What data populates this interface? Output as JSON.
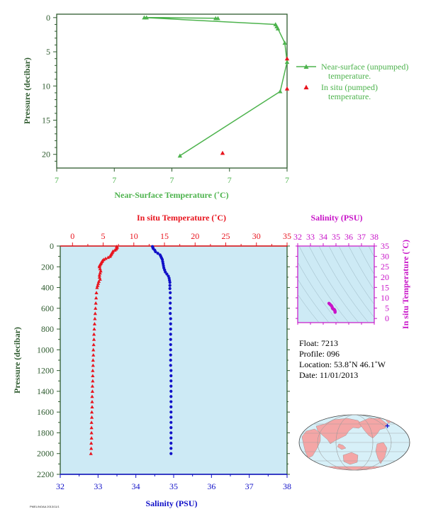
{
  "colors": {
    "surface_green": "#4db34d",
    "axis_green": "#2e5a2e",
    "temp_red": "#e8141e",
    "sal_blue": "#1010c8",
    "magenta": "#c814c8",
    "panel_bg": "#cdeaf5",
    "map_land": "#f4a6a6",
    "map_ocean": "#d7f0f8"
  },
  "chart_data": [
    {
      "type": "line",
      "id": "near-surface",
      "xlabel": "Near-Surface Temperature (˚C)",
      "ylabel": "Pressure (decibar)",
      "x_ticks": [
        "7",
        "7",
        "7",
        "7",
        "7"
      ],
      "y_ticks": [
        0,
        5,
        10,
        15,
        20
      ],
      "xlim": [
        0,
        1
      ],
      "ylim": [
        22,
        -0.5
      ],
      "series": [
        {
          "name": "Near-surface (unpumped) temperature.",
          "marker": "triangle",
          "line": true,
          "points": [
            {
              "x": 0.39,
              "y": 0.0
            },
            {
              "x": 0.69,
              "y": 0.1
            },
            {
              "x": 0.7,
              "y": 0.1
            },
            {
              "x": 0.38,
              "y": 0.0
            },
            {
              "x": 0.95,
              "y": 1.0
            },
            {
              "x": 0.955,
              "y": 1.3
            },
            {
              "x": 0.96,
              "y": 1.6
            },
            {
              "x": 0.99,
              "y": 3.7
            },
            {
              "x": 1.0,
              "y": 6.5
            },
            {
              "x": 0.97,
              "y": 10.8
            },
            {
              "x": 0.535,
              "y": 20.2
            }
          ]
        },
        {
          "name": "In situ (pumped) temperature.",
          "marker": "triangle",
          "line": false,
          "points": [
            {
              "x": 1.0,
              "y": 6.0
            },
            {
              "x": 1.0,
              "y": 10.4
            },
            {
              "x": 0.72,
              "y": 19.8
            }
          ]
        }
      ]
    },
    {
      "type": "scatter",
      "id": "profile",
      "ylabel": "Pressure (decibar)",
      "y_ticks": [
        0,
        200,
        400,
        600,
        800,
        1000,
        1200,
        1400,
        1600,
        1800,
        2000,
        2200
      ],
      "ylim": [
        2200,
        0
      ],
      "temperature_axis": {
        "label": "In situ Temperature (˚C)",
        "ticks": [
          0,
          5,
          10,
          15,
          20,
          25,
          30,
          35
        ],
        "lim": [
          -2,
          35
        ]
      },
      "salinity_axis": {
        "label": "Salinity (PSU)",
        "ticks": [
          32,
          33,
          34,
          35,
          36,
          37,
          38
        ],
        "lim": [
          32,
          38
        ]
      },
      "temperature": {
        "pressure": [
          5,
          10,
          20,
          30,
          40,
          50,
          60,
          70,
          80,
          90,
          100,
          110,
          120,
          130,
          140,
          150,
          160,
          170,
          180,
          190,
          200,
          220,
          240,
          260,
          280,
          300,
          320,
          340,
          360,
          380,
          400,
          450,
          500,
          550,
          600,
          650,
          700,
          750,
          800,
          850,
          900,
          950,
          1000,
          1050,
          1100,
          1150,
          1200,
          1250,
          1300,
          1350,
          1400,
          1450,
          1500,
          1550,
          1600,
          1650,
          1700,
          1750,
          1800,
          1850,
          1900,
          1950,
          2000
        ],
        "values": [
          7.2,
          7.3,
          7.2,
          7.1,
          6.9,
          6.6,
          6.5,
          6.4,
          6.3,
          6.2,
          6.1,
          5.8,
          5.4,
          5.1,
          4.9,
          4.8,
          4.7,
          4.6,
          4.5,
          4.4,
          4.4,
          4.5,
          4.6,
          4.5,
          4.4,
          4.4,
          4.5,
          4.3,
          4.2,
          4.1,
          4.0,
          3.9,
          3.85,
          3.8,
          3.75,
          3.7,
          3.65,
          3.6,
          3.55,
          3.5,
          3.5,
          3.45,
          3.4,
          3.4,
          3.35,
          3.35,
          3.3,
          3.3,
          3.3,
          3.25,
          3.25,
          3.2,
          3.2,
          3.2,
          3.15,
          3.15,
          3.1,
          3.1,
          3.1,
          3.1,
          3.05,
          3.05,
          3.0
        ]
      },
      "salinity": {
        "pressure": [
          5,
          15,
          25,
          40,
          55,
          70,
          85,
          100,
          115,
          130,
          150,
          170,
          190,
          210,
          230,
          250,
          270,
          290,
          310,
          330,
          350,
          380,
          410,
          450,
          500,
          550,
          600,
          650,
          700,
          750,
          800,
          850,
          900,
          950,
          1000,
          1050,
          1100,
          1150,
          1200,
          1250,
          1300,
          1350,
          1400,
          1450,
          1500,
          1550,
          1600,
          1650,
          1700,
          1750,
          1800,
          1850,
          1900,
          1950,
          2000
        ],
        "values": [
          34.44,
          34.45,
          34.46,
          34.5,
          34.52,
          34.58,
          34.64,
          34.66,
          34.68,
          34.7,
          34.71,
          34.72,
          34.73,
          34.74,
          34.76,
          34.78,
          34.82,
          34.86,
          34.88,
          34.89,
          34.9,
          34.9,
          34.9,
          34.91,
          34.91,
          34.91,
          34.91,
          34.91,
          34.92,
          34.92,
          34.92,
          34.92,
          34.92,
          34.92,
          34.92,
          34.92,
          34.92,
          34.92,
          34.93,
          34.93,
          34.93,
          34.93,
          34.93,
          34.93,
          34.93,
          34.93,
          34.93,
          34.93,
          34.93,
          34.93,
          34.93,
          34.93,
          34.93,
          34.93,
          34.93
        ]
      }
    },
    {
      "type": "scatter",
      "id": "ts-diagram",
      "xlabel": "Salinity (PSU)",
      "ylabel": "In situ Temperature (˚C)",
      "x_ticks": [
        32,
        33,
        34,
        35,
        36,
        37,
        38
      ],
      "y_ticks": [
        0,
        5,
        10,
        15,
        20,
        25,
        30,
        35
      ],
      "xlim": [
        32,
        38
      ],
      "ylim": [
        -2,
        35
      ],
      "points": [
        {
          "x": 34.45,
          "y": 7.3
        },
        {
          "x": 34.5,
          "y": 7.0
        },
        {
          "x": 34.55,
          "y": 6.7
        },
        {
          "x": 34.6,
          "y": 6.4
        },
        {
          "x": 34.65,
          "y": 6.1
        },
        {
          "x": 34.7,
          "y": 5.5
        },
        {
          "x": 34.72,
          "y": 5.0
        },
        {
          "x": 34.75,
          "y": 4.7
        },
        {
          "x": 34.8,
          "y": 4.5
        },
        {
          "x": 34.85,
          "y": 4.4
        },
        {
          "x": 34.88,
          "y": 4.2
        },
        {
          "x": 34.9,
          "y": 4.0
        },
        {
          "x": 34.91,
          "y": 3.8
        },
        {
          "x": 34.92,
          "y": 3.6
        },
        {
          "x": 34.92,
          "y": 3.4
        },
        {
          "x": 34.93,
          "y": 3.2
        },
        {
          "x": 34.93,
          "y": 3.0
        }
      ]
    }
  ],
  "float_info": {
    "float": "Float:  7213",
    "profile": "Profile:  096",
    "location": "Location:  53.8˚N  46.1˚W",
    "date": "Date:  11/01/2013"
  },
  "footer_text": "PMEL/NOAA 2013/11/1",
  "map": {
    "float_position": {
      "lat": 53.8,
      "lon": -46.1
    },
    "marker_color": "#1010c8"
  }
}
